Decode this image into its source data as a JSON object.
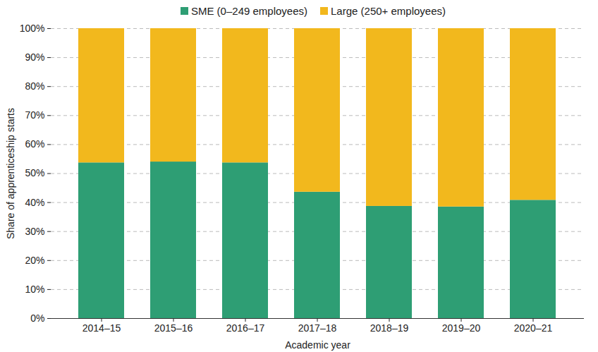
{
  "chart_data": {
    "type": "bar",
    "stacked": true,
    "grid": true,
    "legend": "top",
    "x_label": "Academic year",
    "y_label": "Share of apprenticeship starts",
    "categories": [
      "2014–15",
      "2015–16",
      "2016–17",
      "2017–18",
      "2018–19",
      "2019–20",
      "2020–21"
    ],
    "series": [
      {
        "name": "SME (0–249 employees)",
        "color": "#2e9e74",
        "values": [
          53.7,
          54.0,
          53.7,
          43.6,
          38.7,
          38.5,
          40.8
        ]
      },
      {
        "name": "Large (250+ employees)",
        "color": "#f2b81d",
        "values": [
          46.3,
          46.0,
          46.3,
          56.4,
          61.3,
          61.5,
          59.2
        ]
      }
    ],
    "ylim": [
      0,
      100
    ],
    "yticks": [
      {
        "value": 0,
        "label": "0%"
      },
      {
        "value": 10,
        "label": "10%"
      },
      {
        "value": 20,
        "label": "20%"
      },
      {
        "value": 30,
        "label": "30%"
      },
      {
        "value": 40,
        "label": "40%"
      },
      {
        "value": 50,
        "label": "50%"
      },
      {
        "value": 60,
        "label": "60%"
      },
      {
        "value": 70,
        "label": "70%"
      },
      {
        "value": 80,
        "label": "80%"
      },
      {
        "value": 90,
        "label": "90%"
      },
      {
        "value": 100,
        "label": "100%"
      }
    ]
  }
}
